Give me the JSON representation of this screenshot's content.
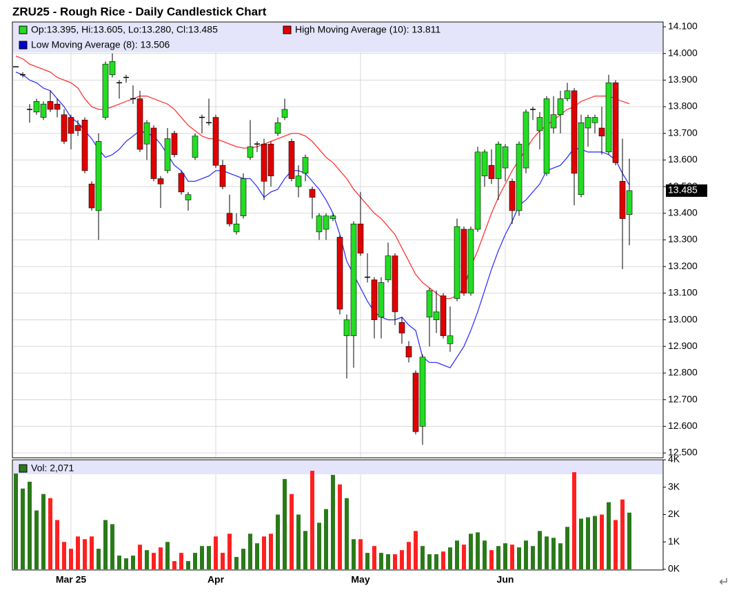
{
  "chart_data": {
    "type": "candlestick",
    "title": "ZRU25 - Rough Rice - Daily Candlestick Chart",
    "ohlc_legend": "Op:13.395, Hi:13.605, Lo:13.280, Cl:13.485",
    "categories": [
      null,
      null,
      null,
      null,
      null,
      null,
      null,
      null,
      "Mar 25",
      null,
      null,
      null,
      null,
      null,
      null,
      null,
      null,
      null,
      null,
      null,
      null,
      null,
      null,
      null,
      null,
      null,
      null,
      null,
      null,
      "Apr",
      null,
      null,
      null,
      null,
      null,
      null,
      null,
      null,
      null,
      null,
      null,
      null,
      null,
      null,
      null,
      null,
      null,
      null,
      null,
      null,
      "May",
      null,
      null,
      null,
      null,
      null,
      null,
      null,
      null,
      null,
      null,
      null,
      null,
      null,
      null,
      null,
      null,
      null,
      null,
      null,
      null,
      "Jun",
      null,
      null,
      null,
      null,
      null,
      null,
      null,
      null,
      null,
      null,
      null,
      null,
      null,
      null,
      null,
      null,
      null,
      null
    ],
    "open": [
      13.95,
      13.92,
      13.79,
      13.78,
      13.76,
      13.82,
      13.81,
      13.77,
      13.76,
      13.73,
      13.75,
      13.51,
      13.41,
      13.76,
      13.92,
      13.89,
      13.91,
      13.83,
      13.83,
      13.66,
      13.72,
      13.53,
      13.56,
      13.7,
      13.55,
      13.45,
      13.61,
      13.76,
      13.74,
      13.76,
      13.58,
      13.4,
      13.33,
      13.39,
      13.61,
      13.66,
      13.66,
      13.66,
      13.7,
      13.76,
      13.67,
      13.5,
      13.55,
      13.49,
      13.33,
      13.34,
      13.38,
      13.31,
      12.94,
      12.94,
      13.36,
      13.16,
      13.15,
      13.01,
      13.15,
      13.24,
      12.99,
      12.9,
      12.8,
      12.6,
      13.01,
      13.0,
      13.09,
      12.91,
      13.08,
      13.34,
      13.1,
      13.34,
      13.54,
      13.58,
      13.53,
      13.57,
      13.52,
      13.41,
      13.57,
      13.79,
      13.71,
      13.55,
      13.72,
      13.77,
      13.83,
      13.86,
      13.47,
      13.72,
      13.74,
      13.72,
      13.63,
      13.89,
      13.52,
      13.395
    ],
    "high": [
      13.95,
      13.93,
      13.81,
      13.83,
      13.82,
      13.86,
      13.83,
      13.79,
      13.77,
      13.75,
      13.76,
      13.52,
      13.7,
      13.97,
      14.0,
      13.9,
      13.92,
      13.88,
      13.86,
      13.75,
      13.73,
      13.54,
      13.72,
      13.71,
      13.56,
      13.48,
      13.7,
      13.77,
      13.83,
      13.77,
      13.6,
      13.47,
      13.4,
      13.55,
      13.75,
      13.67,
      13.68,
      13.67,
      13.76,
      13.83,
      13.68,
      13.58,
      13.62,
      13.5,
      13.4,
      13.4,
      13.4,
      13.32,
      13.02,
      13.37,
      13.48,
      13.25,
      13.16,
      13.16,
      13.29,
      13.25,
      13.01,
      12.92,
      12.81,
      12.87,
      13.12,
      13.11,
      13.1,
      13.05,
      13.38,
      13.35,
      13.35,
      13.65,
      13.64,
      13.64,
      13.67,
      13.66,
      13.53,
      13.67,
      13.79,
      13.8,
      13.78,
      13.84,
      13.84,
      13.86,
      13.89,
      13.87,
      13.77,
      13.77,
      13.77,
      13.8,
      13.92,
      13.9,
      13.68,
      13.605
    ],
    "low": [
      13.95,
      13.91,
      13.74,
      13.77,
      13.75,
      13.78,
      13.76,
      13.66,
      13.64,
      13.69,
      13.55,
      13.41,
      13.3,
      13.75,
      13.91,
      13.83,
      13.89,
      13.81,
      13.63,
      13.6,
      13.52,
      13.42,
      13.55,
      13.61,
      13.47,
      13.41,
      13.6,
      13.7,
      13.73,
      13.57,
      13.49,
      13.35,
      13.32,
      13.38,
      13.6,
      13.63,
      13.45,
      13.5,
      13.69,
      13.75,
      13.52,
      13.46,
      13.52,
      13.38,
      13.3,
      13.3,
      13.37,
      13.02,
      12.78,
      12.82,
      13.24,
      13.14,
      12.93,
      12.93,
      13.14,
      12.98,
      12.91,
      12.84,
      12.57,
      12.53,
      12.9,
      12.95,
      12.93,
      12.88,
      13.07,
      13.09,
      13.09,
      13.33,
      13.5,
      13.51,
      13.45,
      13.52,
      13.36,
      13.39,
      13.55,
      13.75,
      13.64,
      13.54,
      13.7,
      13.7,
      13.82,
      13.43,
      13.46,
      13.65,
      13.7,
      13.62,
      13.62,
      13.58,
      13.19,
      13.28
    ],
    "close": [
      13.95,
      13.92,
      13.79,
      13.82,
      13.81,
      13.79,
      13.79,
      13.67,
      13.7,
      13.71,
      13.56,
      13.42,
      13.67,
      13.96,
      13.97,
      13.89,
      13.91,
      13.83,
      13.64,
      13.74,
      13.53,
      13.51,
      13.68,
      13.62,
      13.48,
      13.47,
      13.69,
      13.76,
      13.74,
      13.58,
      13.5,
      13.36,
      13.36,
      13.53,
      13.65,
      13.66,
      13.52,
      13.54,
      13.74,
      13.79,
      13.53,
      13.54,
      13.61,
      13.46,
      13.39,
      13.39,
      13.39,
      13.04,
      13.0,
      13.36,
      13.25,
      13.16,
      13.0,
      13.14,
      13.24,
      13.03,
      12.95,
      12.86,
      12.58,
      12.86,
      13.11,
      13.03,
      12.94,
      12.94,
      13.35,
      13.1,
      13.34,
      13.63,
      13.63,
      13.53,
      13.66,
      13.65,
      13.41,
      13.66,
      13.78,
      13.79,
      13.76,
      13.83,
      13.77,
      13.83,
      13.86,
      13.55,
      13.74,
      13.76,
      13.76,
      13.69,
      13.89,
      13.59,
      13.38,
      13.485
    ],
    "colors": {
      "up": "#22dd22",
      "down": "#e00000"
    },
    "series": [
      {
        "name": "High Moving Average (10): 13.811",
        "color": "#ff3333",
        "values": [
          13.99,
          13.98,
          13.96,
          13.95,
          13.94,
          13.93,
          13.91,
          13.9,
          13.89,
          13.87,
          13.83,
          13.8,
          13.79,
          13.79,
          13.8,
          13.81,
          13.82,
          13.83,
          13.84,
          13.84,
          13.83,
          13.82,
          13.81,
          13.79,
          13.76,
          13.73,
          13.71,
          13.69,
          13.68,
          13.68,
          13.67,
          13.66,
          13.65,
          13.645,
          13.645,
          13.65,
          13.66,
          13.67,
          13.68,
          13.69,
          13.7,
          13.7,
          13.69,
          13.67,
          13.64,
          13.61,
          13.59,
          13.56,
          13.53,
          13.49,
          13.46,
          13.43,
          13.4,
          13.38,
          13.35,
          13.32,
          13.27,
          13.22,
          13.17,
          13.14,
          13.12,
          13.1,
          13.08,
          13.08,
          13.09,
          13.12,
          13.2,
          13.26,
          13.33,
          13.4,
          13.46,
          13.51,
          13.56,
          13.6,
          13.64,
          13.68,
          13.71,
          13.73,
          13.75,
          13.77,
          13.79,
          13.8,
          13.82,
          13.83,
          13.84,
          13.84,
          13.84,
          13.83,
          13.82,
          13.811
        ]
      },
      {
        "name": "Low Moving Average (8): 13.506",
        "color": "#3333ff",
        "values": [
          13.93,
          13.92,
          13.9,
          13.89,
          13.87,
          13.86,
          13.83,
          13.8,
          13.76,
          13.74,
          13.71,
          13.68,
          13.64,
          13.61,
          13.62,
          13.64,
          13.67,
          13.69,
          13.71,
          13.7,
          13.69,
          13.66,
          13.62,
          13.58,
          13.56,
          13.52,
          13.52,
          13.53,
          13.54,
          13.56,
          13.56,
          13.55,
          13.54,
          13.53,
          13.53,
          13.5,
          13.46,
          13.48,
          13.49,
          13.53,
          13.56,
          13.56,
          13.55,
          13.52,
          13.49,
          13.45,
          13.4,
          13.32,
          13.22,
          13.17,
          13.12,
          13.07,
          13.03,
          13.01,
          13.0,
          13.0,
          13.01,
          12.98,
          12.96,
          12.86,
          12.84,
          12.84,
          12.83,
          12.82,
          12.86,
          12.9,
          12.96,
          13.03,
          13.11,
          13.19,
          13.26,
          13.32,
          13.37,
          13.43,
          13.45,
          13.48,
          13.51,
          13.56,
          13.57,
          13.58,
          13.61,
          13.645,
          13.64,
          13.63,
          13.63,
          13.63,
          13.62,
          13.6,
          13.55,
          13.506
        ]
      }
    ],
    "last_price": {
      "value": 13.485,
      "label": "13.485"
    },
    "ylim": [
      12.482,
      14.118
    ],
    "yticks": [
      {
        "value": 12.5,
        "label": "12.500"
      },
      {
        "value": 12.6,
        "label": "12.600"
      },
      {
        "value": 12.7,
        "label": "12.700"
      },
      {
        "value": 12.8,
        "label": "12.800"
      },
      {
        "value": 12.9,
        "label": "12.900"
      },
      {
        "value": 13.0,
        "label": "13.000"
      },
      {
        "value": 13.1,
        "label": "13.100"
      },
      {
        "value": 13.2,
        "label": "13.200"
      },
      {
        "value": 13.3,
        "label": "13.300"
      },
      {
        "value": 13.4,
        "label": "13.400"
      },
      {
        "value": 13.5,
        "label": "13.500"
      },
      {
        "value": 13.6,
        "label": "13.600"
      },
      {
        "value": 13.7,
        "label": "13.700"
      },
      {
        "value": 13.8,
        "label": "13.800"
      },
      {
        "value": 13.9,
        "label": "13.900"
      },
      {
        "value": 14.0,
        "label": "14.000"
      },
      {
        "value": 14.1,
        "label": "14.100"
      }
    ],
    "grid": true,
    "volume": {
      "name": "Vol: 2,071",
      "colors": {
        "up": "#2a7a1a",
        "down": "#ff2020"
      },
      "values": [
        3500,
        2950,
        3200,
        2150,
        2750,
        2600,
        1800,
        1000,
        750,
        1200,
        1100,
        1200,
        750,
        1800,
        1650,
        500,
        400,
        500,
        900,
        700,
        600,
        800,
        1000,
        300,
        600,
        300,
        600,
        850,
        850,
        1200,
        600,
        1300,
        450,
        750,
        1300,
        950,
        1200,
        1300,
        2000,
        3300,
        2750,
        2000,
        1400,
        3600,
        1700,
        2200,
        3450,
        3100,
        2600,
        1100,
        1100,
        600,
        850,
        600,
        550,
        550,
        700,
        1000,
        1400,
        850,
        550,
        550,
        650,
        800,
        1050,
        900,
        1300,
        1350,
        1050,
        700,
        850,
        950,
        900,
        800,
        1050,
        850,
        1400,
        1200,
        1150,
        950,
        1550,
        3550,
        1850,
        1900,
        1950,
        2000,
        2450,
        1800,
        2550,
        2071
      ],
      "ylim": [
        0,
        4000
      ],
      "yticks": [
        {
          "value": 0,
          "label": "0K"
        },
        {
          "value": 1000,
          "label": "1K"
        },
        {
          "value": 2000,
          "label": "2K"
        },
        {
          "value": 3000,
          "label": "3K"
        },
        {
          "value": 4000,
          "label": "4K"
        }
      ]
    },
    "corner_mark": "↵"
  }
}
